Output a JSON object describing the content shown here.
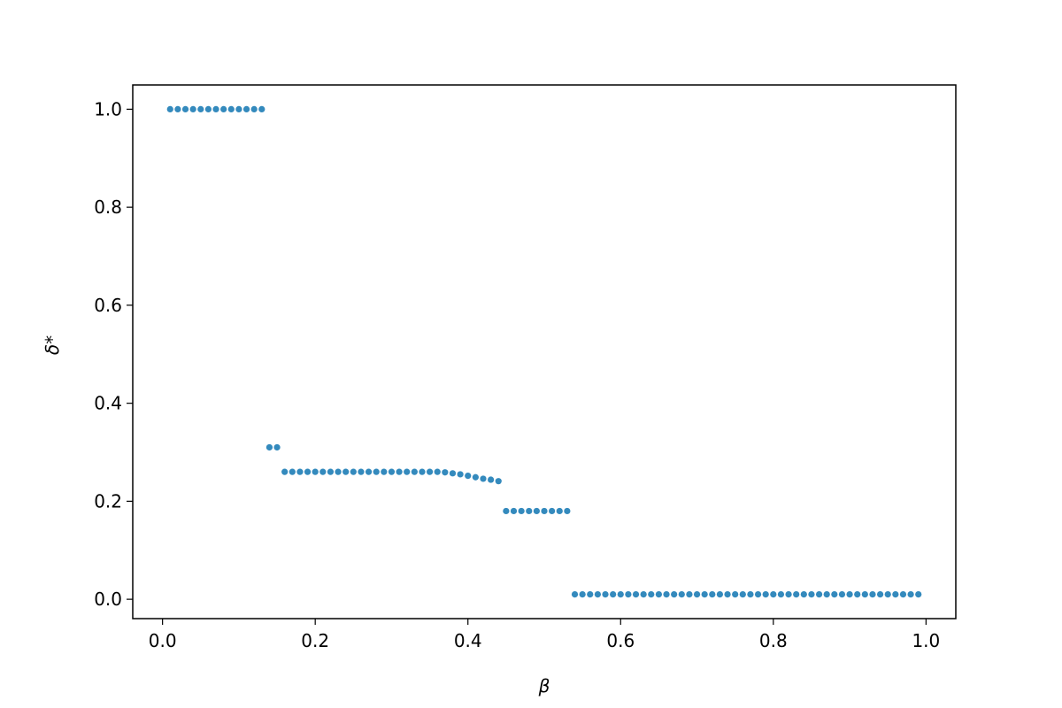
{
  "chart_data": {
    "type": "scatter",
    "xlabel": "β",
    "ylabel": "δ*",
    "series": [
      {
        "color": "#348ABD",
        "x": [
          0.01,
          0.02,
          0.03,
          0.04,
          0.05,
          0.06,
          0.07,
          0.08,
          0.09,
          0.1,
          0.11,
          0.12,
          0.13,
          0.14,
          0.15,
          0.16,
          0.17,
          0.18,
          0.19,
          0.2,
          0.21,
          0.22,
          0.23,
          0.24,
          0.25,
          0.26,
          0.27,
          0.28,
          0.29,
          0.3,
          0.31,
          0.32,
          0.33,
          0.34,
          0.35,
          0.36,
          0.37,
          0.38,
          0.39,
          0.4,
          0.41,
          0.42,
          0.43,
          0.44,
          0.45,
          0.46,
          0.47,
          0.48,
          0.49,
          0.5,
          0.51,
          0.52,
          0.53,
          0.54,
          0.55,
          0.56,
          0.57,
          0.58,
          0.59,
          0.6,
          0.61,
          0.62,
          0.63,
          0.64,
          0.65,
          0.66,
          0.67,
          0.68,
          0.69,
          0.7,
          0.71,
          0.72,
          0.73,
          0.74,
          0.75,
          0.76,
          0.77,
          0.78,
          0.79,
          0.8,
          0.81,
          0.82,
          0.83,
          0.84,
          0.85,
          0.86,
          0.87,
          0.88,
          0.89,
          0.9,
          0.91,
          0.92,
          0.93,
          0.94,
          0.95,
          0.96,
          0.97,
          0.98,
          0.99
        ],
        "values": [
          1.0,
          1.0,
          1.0,
          1.0,
          1.0,
          1.0,
          1.0,
          1.0,
          1.0,
          1.0,
          1.0,
          1.0,
          1.0,
          0.31,
          0.31,
          0.26,
          0.26,
          0.26,
          0.26,
          0.26,
          0.26,
          0.26,
          0.26,
          0.26,
          0.26,
          0.26,
          0.26,
          0.26,
          0.26,
          0.26,
          0.26,
          0.26,
          0.26,
          0.26,
          0.26,
          0.26,
          0.259,
          0.257,
          0.255,
          0.252,
          0.249,
          0.246,
          0.244,
          0.241,
          0.18,
          0.18,
          0.18,
          0.18,
          0.18,
          0.18,
          0.18,
          0.18,
          0.18,
          0.01,
          0.01,
          0.01,
          0.01,
          0.01,
          0.01,
          0.01,
          0.01,
          0.01,
          0.01,
          0.01,
          0.01,
          0.01,
          0.01,
          0.01,
          0.01,
          0.01,
          0.01,
          0.01,
          0.01,
          0.01,
          0.01,
          0.01,
          0.01,
          0.01,
          0.01,
          0.01,
          0.01,
          0.01,
          0.01,
          0.01,
          0.01,
          0.01,
          0.01,
          0.01,
          0.01,
          0.01,
          0.01,
          0.01,
          0.01,
          0.01,
          0.01,
          0.01,
          0.01,
          0.01,
          0.01
        ]
      }
    ],
    "xlim": [
      -0.039,
      1.039
    ],
    "ylim": [
      -0.0395,
      1.0495
    ],
    "xticks": [
      {
        "value": 0,
        "label": "0.0"
      },
      0.2,
      0.4,
      0.6,
      0.8,
      {
        "value": 1,
        "label": "1.0"
      }
    ],
    "yticks": [
      {
        "value": 0,
        "label": "0.0"
      },
      0.2,
      0.4,
      0.6,
      0.8,
      {
        "value": 1,
        "label": "1.0"
      }
    ],
    "grid": false
  }
}
